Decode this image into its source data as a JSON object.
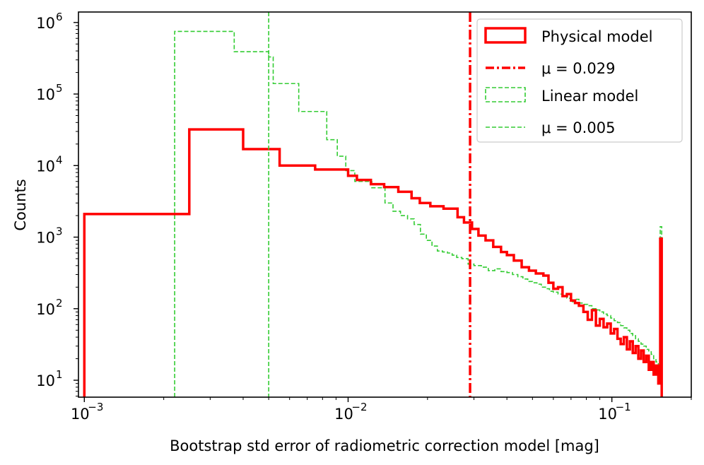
{
  "chart_data": {
    "type": "histogram",
    "xscale": "log",
    "yscale": "log",
    "xlabel": "Bootstrap std error of radiometric correction model [mag]",
    "ylabel": "Counts",
    "xlim": [
      0.00095,
      0.2
    ],
    "ylim": [
      5.8,
      1400000
    ],
    "x_ticks": [
      {
        "value": 0.001,
        "base": "10",
        "exp": "−3"
      },
      {
        "value": 0.01,
        "base": "10",
        "exp": "−2"
      },
      {
        "value": 0.1,
        "base": "10",
        "exp": "−1"
      }
    ],
    "y_ticks": [
      {
        "value": 10,
        "base": "10",
        "exp": "1"
      },
      {
        "value": 100,
        "base": "10",
        "exp": "2"
      },
      {
        "value": 1000,
        "base": "10",
        "exp": "3"
      },
      {
        "value": 10000,
        "base": "10",
        "exp": "4"
      },
      {
        "value": 100000,
        "base": "10",
        "exp": "5"
      },
      {
        "value": 1000000,
        "base": "10",
        "exp": "6"
      }
    ],
    "series": [
      {
        "name": "Physical model",
        "style": "step-solid",
        "color": "#ff0000",
        "mean_label": "μ = 0.029",
        "mean": 0.029,
        "mean_style": "dash-dot",
        "steps": [
          [
            0.001,
            2100
          ],
          [
            0.0025,
            32000
          ],
          [
            0.004,
            17000
          ],
          [
            0.0055,
            10000
          ],
          [
            0.0075,
            8800
          ],
          [
            0.01,
            7200
          ],
          [
            0.0108,
            6300
          ],
          [
            0.0122,
            5500
          ],
          [
            0.0137,
            5000
          ],
          [
            0.0155,
            4300
          ],
          [
            0.0174,
            3500
          ],
          [
            0.0187,
            3000
          ],
          [
            0.0205,
            2700
          ],
          [
            0.023,
            2500
          ],
          [
            0.026,
            1900
          ],
          [
            0.0275,
            1600
          ],
          [
            0.0295,
            1300
          ],
          [
            0.0312,
            1050
          ],
          [
            0.0332,
            900
          ],
          [
            0.0355,
            730
          ],
          [
            0.038,
            620
          ],
          [
            0.04,
            560
          ],
          [
            0.0425,
            470
          ],
          [
            0.0455,
            380
          ],
          [
            0.0485,
            340
          ],
          [
            0.0515,
            310
          ],
          [
            0.055,
            290
          ],
          [
            0.0575,
            230
          ],
          [
            0.06,
            190
          ],
          [
            0.0625,
            200
          ],
          [
            0.065,
            150
          ],
          [
            0.0675,
            160
          ],
          [
            0.07,
            130
          ],
          [
            0.0725,
            120
          ],
          [
            0.075,
            110
          ],
          [
            0.078,
            90
          ],
          [
            0.081,
            70
          ],
          [
            0.084,
            95
          ],
          [
            0.087,
            58
          ],
          [
            0.09,
            72
          ],
          [
            0.093,
            55
          ],
          [
            0.096,
            62
          ],
          [
            0.099,
            45
          ],
          [
            0.102,
            52
          ],
          [
            0.105,
            38
          ],
          [
            0.108,
            32
          ],
          [
            0.111,
            40
          ],
          [
            0.114,
            27
          ],
          [
            0.117,
            35
          ],
          [
            0.12,
            24
          ],
          [
            0.123,
            30
          ],
          [
            0.126,
            20
          ],
          [
            0.129,
            26
          ],
          [
            0.132,
            18
          ],
          [
            0.135,
            22
          ],
          [
            0.138,
            14
          ],
          [
            0.141,
            18
          ],
          [
            0.144,
            12
          ],
          [
            0.147,
            16
          ],
          [
            0.15,
            9
          ],
          [
            0.1525,
            950
          ],
          [
            0.1545,
            0
          ]
        ]
      },
      {
        "name": "Linear model",
        "style": "step-dashed",
        "color": "#33cc33",
        "mean_label": "μ = 0.005",
        "mean": 0.005,
        "mean_style": "dashed",
        "steps": [
          [
            0.0022,
            750000
          ],
          [
            0.0037,
            390000
          ],
          [
            0.005,
            330000
          ],
          [
            0.0052,
            140000
          ],
          [
            0.0065,
            57000
          ],
          [
            0.0083,
            23000
          ],
          [
            0.0091,
            13500
          ],
          [
            0.0098,
            8500
          ],
          [
            0.0106,
            6000
          ],
          [
            0.0123,
            4900
          ],
          [
            0.0138,
            3000
          ],
          [
            0.0148,
            2300
          ],
          [
            0.0158,
            2000
          ],
          [
            0.0168,
            1800
          ],
          [
            0.0178,
            1500
          ],
          [
            0.0188,
            1100
          ],
          [
            0.0198,
            900
          ],
          [
            0.0208,
            750
          ],
          [
            0.0218,
            640
          ],
          [
            0.0228,
            620
          ],
          [
            0.0238,
            600
          ],
          [
            0.0248,
            560
          ],
          [
            0.0258,
            520
          ],
          [
            0.027,
            500
          ],
          [
            0.0285,
            420
          ],
          [
            0.03,
            400
          ],
          [
            0.032,
            380
          ],
          [
            0.034,
            340
          ],
          [
            0.036,
            360
          ],
          [
            0.038,
            330
          ],
          [
            0.04,
            320
          ],
          [
            0.042,
            300
          ],
          [
            0.044,
            280
          ],
          [
            0.046,
            260
          ],
          [
            0.048,
            240
          ],
          [
            0.05,
            230
          ],
          [
            0.052,
            220
          ],
          [
            0.054,
            200
          ],
          [
            0.056,
            190
          ],
          [
            0.058,
            175
          ],
          [
            0.06,
            170
          ],
          [
            0.0625,
            160
          ],
          [
            0.065,
            150
          ],
          [
            0.0675,
            140
          ],
          [
            0.07,
            125
          ],
          [
            0.0725,
            135
          ],
          [
            0.075,
            120
          ],
          [
            0.078,
            115
          ],
          [
            0.081,
            110
          ],
          [
            0.084,
            100
          ],
          [
            0.087,
            96
          ],
          [
            0.09,
            90
          ],
          [
            0.093,
            84
          ],
          [
            0.096,
            80
          ],
          [
            0.099,
            74
          ],
          [
            0.102,
            68
          ],
          [
            0.105,
            64
          ],
          [
            0.108,
            58
          ],
          [
            0.111,
            54
          ],
          [
            0.114,
            50
          ],
          [
            0.117,
            45
          ],
          [
            0.12,
            42
          ],
          [
            0.123,
            38
          ],
          [
            0.126,
            35
          ],
          [
            0.129,
            32
          ],
          [
            0.132,
            30
          ],
          [
            0.135,
            27
          ],
          [
            0.138,
            25
          ],
          [
            0.141,
            23
          ],
          [
            0.144,
            20
          ],
          [
            0.147,
            18
          ],
          [
            0.15,
            15
          ],
          [
            0.1525,
            1400
          ],
          [
            0.1545,
            0
          ]
        ]
      }
    ]
  }
}
